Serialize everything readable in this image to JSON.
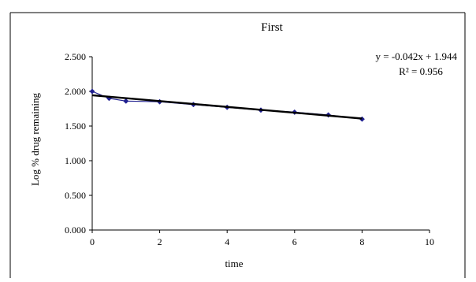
{
  "chart_data": {
    "type": "scatter",
    "title": "First",
    "xlabel": "time",
    "ylabel": "Log % drug remaining",
    "xlim": [
      0,
      10
    ],
    "ylim": [
      0,
      2.5
    ],
    "x_ticks": [
      "0",
      "2",
      "4",
      "6",
      "8",
      "10"
    ],
    "y_ticks": [
      "0.000",
      "0.500",
      "1.000",
      "1.500",
      "2.000",
      "2.500"
    ],
    "grid": false,
    "legend": "none",
    "series": [
      {
        "x": [
          0,
          0.5,
          1,
          2,
          3,
          4,
          5,
          6,
          7,
          8
        ],
        "y": [
          2.0,
          1.9,
          1.86,
          1.85,
          1.81,
          1.77,
          1.73,
          1.7,
          1.66,
          1.6
        ],
        "color": "#1f1f8f",
        "marker": "diamond"
      }
    ],
    "trendline": {
      "x": [
        0,
        8
      ],
      "y": [
        1.944,
        1.608
      ],
      "color": "#000000",
      "equation": "y = -0.042x + 1.944",
      "r_squared": "R² = 0.956"
    }
  }
}
